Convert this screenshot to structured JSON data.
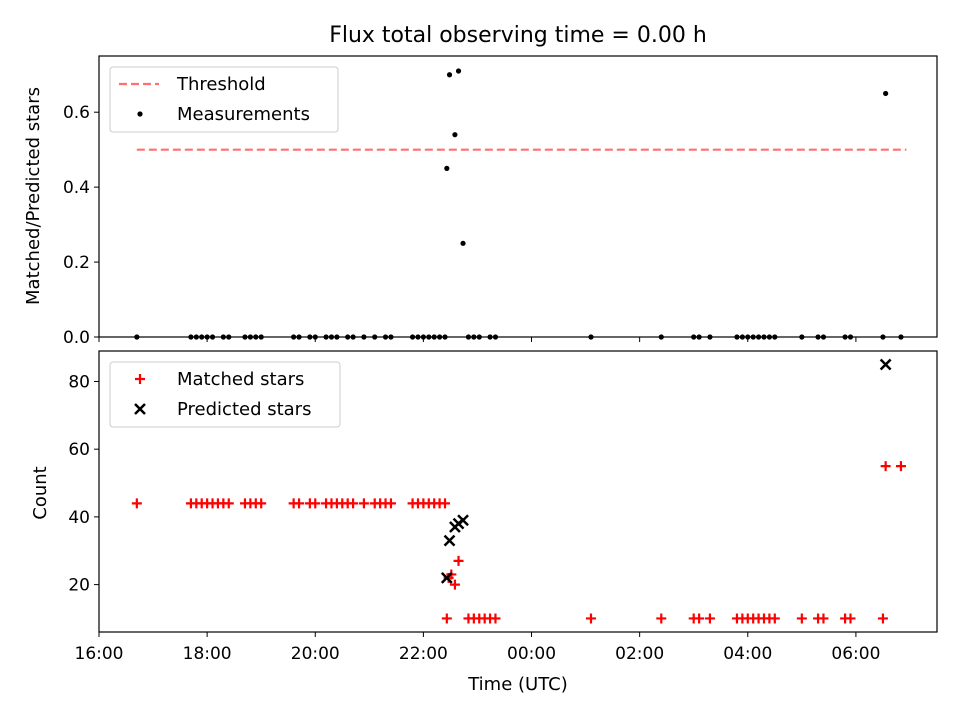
{
  "chart_data": [
    {
      "type": "scatter",
      "title": "Flux total observing time = 0.00 h",
      "xlabel": "",
      "ylabel": "Matched/Predicted stars",
      "xlim": [
        "16:00",
        "07:30"
      ],
      "ylim": [
        0.0,
        0.75
      ],
      "x_ticks": [
        "16:00",
        "18:00",
        "20:00",
        "22:00",
        "00:00",
        "02:00",
        "04:00",
        "06:00"
      ],
      "y_ticks": [
        "0.0",
        "0.2",
        "0.4",
        "0.6"
      ],
      "grid": false,
      "legend": "top-left",
      "series": [
        {
          "name": "Threshold",
          "style": "dashed line",
          "color": "#ff7070",
          "points": [
            [
              "16:42",
              0.5
            ],
            [
              "06:56",
              0.5
            ]
          ]
        },
        {
          "name": "Measurements",
          "style": "dot",
          "color": "#000000",
          "points": [
            [
              "16:42",
              0.0
            ],
            [
              "17:42",
              0.0
            ],
            [
              "17:48",
              0.0
            ],
            [
              "17:54",
              0.0
            ],
            [
              "18:00",
              0.0
            ],
            [
              "18:06",
              0.0
            ],
            [
              "18:18",
              0.0
            ],
            [
              "18:24",
              0.0
            ],
            [
              "18:42",
              0.0
            ],
            [
              "18:48",
              0.0
            ],
            [
              "18:54",
              0.0
            ],
            [
              "19:00",
              0.0
            ],
            [
              "19:36",
              0.0
            ],
            [
              "19:42",
              0.0
            ],
            [
              "19:54",
              0.0
            ],
            [
              "20:00",
              0.0
            ],
            [
              "20:12",
              0.0
            ],
            [
              "20:18",
              0.0
            ],
            [
              "20:24",
              0.0
            ],
            [
              "20:36",
              0.0
            ],
            [
              "20:42",
              0.0
            ],
            [
              "20:54",
              0.0
            ],
            [
              "21:06",
              0.0
            ],
            [
              "21:18",
              0.0
            ],
            [
              "21:24",
              0.0
            ],
            [
              "21:48",
              0.0
            ],
            [
              "21:54",
              0.0
            ],
            [
              "22:00",
              0.0
            ],
            [
              "22:06",
              0.0
            ],
            [
              "22:12",
              0.0
            ],
            [
              "22:18",
              0.0
            ],
            [
              "22:24",
              0.0
            ],
            [
              "22:26",
              0.45
            ],
            [
              "22:29",
              0.7
            ],
            [
              "22:35",
              0.54
            ],
            [
              "22:39",
              0.71
            ],
            [
              "22:44",
              0.25
            ],
            [
              "22:50",
              0.0
            ],
            [
              "22:56",
              0.0
            ],
            [
              "23:02",
              0.0
            ],
            [
              "23:14",
              0.0
            ],
            [
              "23:20",
              0.0
            ],
            [
              "01:06",
              0.0
            ],
            [
              "02:24",
              0.0
            ],
            [
              "03:00",
              0.0
            ],
            [
              "03:06",
              0.0
            ],
            [
              "03:18",
              0.0
            ],
            [
              "03:48",
              0.0
            ],
            [
              "03:54",
              0.0
            ],
            [
              "04:00",
              0.0
            ],
            [
              "04:06",
              0.0
            ],
            [
              "04:12",
              0.0
            ],
            [
              "04:18",
              0.0
            ],
            [
              "04:24",
              0.0
            ],
            [
              "04:30",
              0.0
            ],
            [
              "05:00",
              0.0
            ],
            [
              "05:18",
              0.0
            ],
            [
              "05:24",
              0.0
            ],
            [
              "05:48",
              0.0
            ],
            [
              "05:54",
              0.0
            ],
            [
              "06:30",
              0.0
            ],
            [
              "06:33",
              0.65
            ],
            [
              "06:50",
              0.0
            ]
          ]
        }
      ]
    },
    {
      "type": "scatter",
      "title": "",
      "xlabel": "Time (UTC)",
      "ylabel": "Count",
      "xlim": [
        "16:00",
        "07:30"
      ],
      "ylim": [
        6,
        89
      ],
      "x_ticks": [
        "16:00",
        "18:00",
        "20:00",
        "22:00",
        "00:00",
        "02:00",
        "04:00",
        "06:00"
      ],
      "y_ticks": [
        "20",
        "40",
        "60",
        "80"
      ],
      "grid": false,
      "legend": "top-left",
      "series": [
        {
          "name": "Matched stars",
          "style": "plus",
          "color": "#ff0000",
          "points": [
            [
              "16:42",
              44
            ],
            [
              "17:42",
              44
            ],
            [
              "17:48",
              44
            ],
            [
              "17:54",
              44
            ],
            [
              "18:00",
              44
            ],
            [
              "18:06",
              44
            ],
            [
              "18:12",
              44
            ],
            [
              "18:18",
              44
            ],
            [
              "18:24",
              44
            ],
            [
              "18:42",
              44
            ],
            [
              "18:48",
              44
            ],
            [
              "18:54",
              44
            ],
            [
              "19:00",
              44
            ],
            [
              "19:36",
              44
            ],
            [
              "19:42",
              44
            ],
            [
              "19:54",
              44
            ],
            [
              "20:00",
              44
            ],
            [
              "20:12",
              44
            ],
            [
              "20:18",
              44
            ],
            [
              "20:24",
              44
            ],
            [
              "20:30",
              44
            ],
            [
              "20:36",
              44
            ],
            [
              "20:42",
              44
            ],
            [
              "20:54",
              44
            ],
            [
              "21:06",
              44
            ],
            [
              "21:12",
              44
            ],
            [
              "21:18",
              44
            ],
            [
              "21:24",
              44
            ],
            [
              "21:48",
              44
            ],
            [
              "21:54",
              44
            ],
            [
              "22:00",
              44
            ],
            [
              "22:06",
              44
            ],
            [
              "22:12",
              44
            ],
            [
              "22:18",
              44
            ],
            [
              "22:24",
              44
            ],
            [
              "22:26",
              10
            ],
            [
              "22:28",
              22
            ],
            [
              "22:31",
              23
            ],
            [
              "22:35",
              20
            ],
            [
              "22:39",
              27
            ],
            [
              "22:50",
              10
            ],
            [
              "22:56",
              10
            ],
            [
              "23:02",
              10
            ],
            [
              "23:08",
              10
            ],
            [
              "23:14",
              10
            ],
            [
              "23:20",
              10
            ],
            [
              "01:06",
              10
            ],
            [
              "02:24",
              10
            ],
            [
              "03:00",
              10
            ],
            [
              "03:06",
              10
            ],
            [
              "03:18",
              10
            ],
            [
              "03:48",
              10
            ],
            [
              "03:54",
              10
            ],
            [
              "04:00",
              10
            ],
            [
              "04:06",
              10
            ],
            [
              "04:12",
              10
            ],
            [
              "04:18",
              10
            ],
            [
              "04:24",
              10
            ],
            [
              "04:30",
              10
            ],
            [
              "05:00",
              10
            ],
            [
              "05:18",
              10
            ],
            [
              "05:24",
              10
            ],
            [
              "05:48",
              10
            ],
            [
              "05:54",
              10
            ],
            [
              "06:30",
              10
            ],
            [
              "06:33",
              55
            ],
            [
              "06:50",
              55
            ]
          ]
        },
        {
          "name": "Predicted stars",
          "style": "x",
          "color": "#000000",
          "points": [
            [
              "22:26",
              22
            ],
            [
              "22:29",
              33
            ],
            [
              "22:35",
              37
            ],
            [
              "22:39",
              38
            ],
            [
              "22:44",
              39
            ],
            [
              "06:33",
              85
            ]
          ]
        }
      ]
    }
  ]
}
